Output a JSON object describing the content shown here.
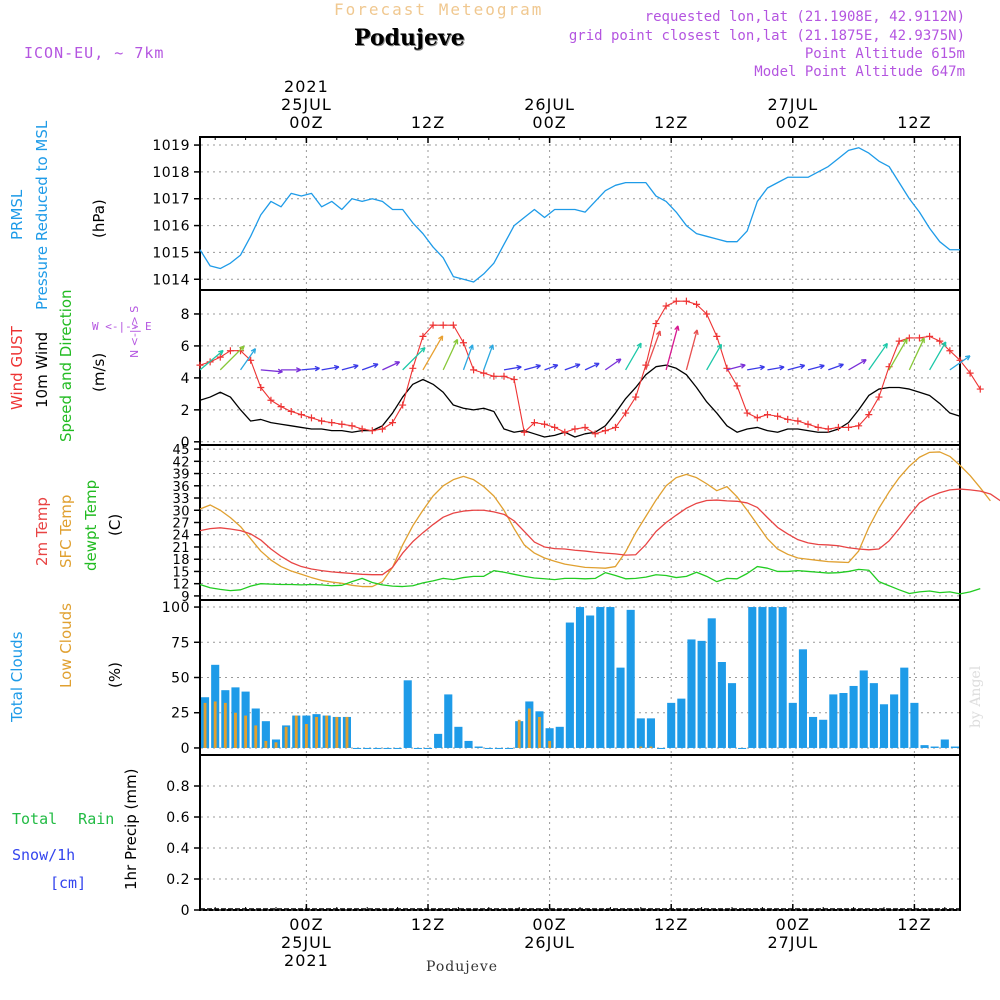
{
  "header": {
    "product": "Forecast Meteogram",
    "station": "Podujeve",
    "model": "ICON-EU, ~ 7km",
    "requested": "requested lon,lat (21.1908E, 42.9112N)",
    "gridpoint": "grid point closest lon,lat (21.1875E, 42.9375N)",
    "point_alt": "Point Altitude 615m",
    "model_alt": "Model Point Altitude 647m",
    "footer_station": "Podujeve",
    "credit": "by Angel"
  },
  "time_axis": {
    "top_year": "2021",
    "bottom_year": "2021",
    "ticks": [
      {
        "h": 24,
        "hour": "00Z",
        "date": "25JUL"
      },
      {
        "h": 36,
        "hour": "12Z",
        "date": ""
      },
      {
        "h": 48,
        "hour": "00Z",
        "date": "26JUL"
      },
      {
        "h": 60,
        "hour": "12Z",
        "date": ""
      },
      {
        "h": 72,
        "hour": "00Z",
        "date": "27JUL"
      },
      {
        "h": 84,
        "hour": "12Z",
        "date": ""
      }
    ],
    "start_hour": 13.5,
    "end_hour": 88.5
  },
  "panel_labels": {
    "p1": [
      "PRMSL",
      "Pressure Reduced to MSL",
      "(hPa)"
    ],
    "p2": [
      "Wind GUST",
      "10m Wind",
      "Speed and Direction",
      "(m/s)"
    ],
    "compass": [
      "W <-|-> E",
      "N <-|-> S"
    ],
    "p3": [
      "2m Temp",
      "SFC Temp",
      "dewpt Temp",
      "(C)"
    ],
    "p4": [
      "Total Clouds",
      "Low Clouds",
      "(%)"
    ],
    "p5_left": [
      "Total Rain",
      "Snow/1h",
      "[cm]"
    ],
    "p5_axis": "1hr Precip (mm)"
  },
  "colors": {
    "pressure": "#1e9be8",
    "gust": "#ee3333",
    "wind": "#000000",
    "t2m": "#e84444",
    "tsfc": "#e0a030",
    "dewpt": "#22cc22",
    "total_clouds": "#1e9be8",
    "low_clouds": "#e0a030",
    "rain": "#22bb44",
    "snow": "#3344ee",
    "purple": "#b455e0"
  },
  "chart_data": [
    {
      "type": "line",
      "title": "PRMSL Pressure Reduced to MSL",
      "ylabel": "(hPa)",
      "ylim": [
        1013.6,
        1019.3
      ],
      "yticks": [
        1014,
        1015,
        1016,
        1017,
        1018,
        1019
      ],
      "x_start": 13.5,
      "x_step": 1,
      "series": [
        {
          "name": "PRMSL",
          "values": [
            1015.1,
            1014.5,
            1014.4,
            1014.6,
            1014.9,
            1015.6,
            1016.4,
            1016.9,
            1016.7,
            1017.2,
            1017.1,
            1017.2,
            1016.7,
            1016.9,
            1016.6,
            1017.0,
            1016.9,
            1017.0,
            1016.9,
            1016.6,
            1016.6,
            1016.1,
            1015.7,
            1015.2,
            1014.8,
            1014.1,
            1014.0,
            1013.9,
            1014.2,
            1014.6,
            1015.3,
            1016.0,
            1016.3,
            1016.6,
            1016.3,
            1016.6,
            1016.6,
            1016.6,
            1016.5,
            1016.9,
            1017.3,
            1017.5,
            1017.6,
            1017.6,
            1017.6,
            1017.1,
            1016.9,
            1016.5,
            1016.0,
            1015.7,
            1015.6,
            1015.5,
            1015.4,
            1015.4,
            1015.8,
            1016.9,
            1017.4,
            1017.6,
            1017.8,
            1017.8,
            1017.8,
            1018.0,
            1018.2,
            1018.5,
            1018.8,
            1018.9,
            1018.7,
            1018.4,
            1018.2,
            1017.6,
            1017.0,
            1016.5,
            1015.9,
            1015.4,
            1015.1,
            1015.1
          ]
        }
      ]
    },
    {
      "type": "line",
      "title": "Wind GUST / 10m Wind Speed and Direction",
      "ylabel": "(m/s)",
      "ylim": [
        -0.2,
        9.5
      ],
      "yticks": [
        0,
        2,
        4,
        6,
        8
      ],
      "x_start": 13.5,
      "x_step": 1,
      "series": [
        {
          "name": "Wind GUST",
          "values": [
            4.8,
            5.0,
            5.3,
            5.7,
            5.7,
            5.1,
            3.4,
            2.6,
            2.2,
            1.9,
            1.7,
            1.5,
            1.3,
            1.2,
            1.1,
            1.0,
            0.8,
            0.7,
            0.8,
            1.2,
            2.3,
            4.6,
            6.6,
            7.3,
            7.3,
            7.3,
            6.2,
            4.5,
            4.3,
            4.1,
            4.1,
            3.9,
            0.6,
            1.2,
            1.1,
            0.9,
            0.6,
            0.8,
            0.9,
            0.5,
            0.7,
            0.9,
            1.8,
            2.8,
            4.8,
            7.4,
            8.5,
            8.8,
            8.8,
            8.6,
            8.0,
            6.6,
            4.6,
            3.5,
            1.8,
            1.5,
            1.7,
            1.6,
            1.4,
            1.3,
            1.1,
            0.9,
            0.8,
            0.9,
            0.9,
            1.0,
            1.7,
            2.8,
            4.7,
            6.3,
            6.5,
            6.5,
            6.6,
            6.3,
            5.7,
            5.1,
            4.3,
            3.3
          ]
        },
        {
          "name": "10m Wind",
          "values": [
            2.6,
            2.8,
            3.1,
            2.8,
            2.0,
            1.3,
            1.4,
            1.2,
            1.1,
            1.0,
            0.9,
            0.8,
            0.8,
            0.7,
            0.7,
            0.6,
            0.7,
            0.7,
            1.0,
            1.8,
            2.8,
            3.6,
            3.9,
            3.6,
            3.1,
            2.3,
            2.1,
            2.0,
            2.1,
            1.9,
            0.8,
            0.6,
            0.7,
            0.5,
            0.3,
            0.4,
            0.6,
            0.3,
            0.5,
            0.6,
            1.0,
            1.8,
            2.7,
            3.4,
            4.2,
            4.7,
            4.8,
            4.6,
            4.2,
            3.4,
            2.5,
            1.8,
            1.0,
            0.6,
            0.8,
            0.9,
            0.7,
            0.6,
            0.8,
            0.8,
            0.7,
            0.6,
            0.6,
            0.8,
            1.2,
            2.0,
            2.9,
            3.3,
            3.4,
            3.4,
            3.3,
            3.1,
            2.9,
            2.4,
            1.8,
            1.6
          ]
        }
      ],
      "wind_direction_from_deg": [
        230,
        230,
        225,
        225,
        215,
        200,
        275,
        270,
        270,
        270,
        265,
        265,
        260,
        260,
        255,
        255,
        250,
        250,
        245,
        240,
        225,
        215,
        210,
        210,
        205,
        200,
        200,
        195,
        200,
        205,
        260,
        260,
        255,
        255,
        250,
        250,
        250,
        245,
        245,
        245,
        235,
        225,
        210,
        205,
        200,
        200,
        195,
        195,
        195,
        190,
        210,
        250,
        255,
        255,
        260,
        260,
        260,
        260,
        255,
        255,
        255,
        250,
        250,
        250,
        240,
        225,
        215,
        210,
        210,
        205,
        205,
        200,
        210,
        220,
        235,
        245
      ]
    },
    {
      "type": "line",
      "title": "2m Temp / SFC Temp / dewpt Temp",
      "ylabel": "(C)",
      "ylim": [
        8,
        46
      ],
      "yticks": [
        9,
        12,
        15,
        18,
        21,
        24,
        27,
        30,
        33,
        36,
        39,
        42,
        45
      ],
      "x_start": 13.5,
      "x_step": 1,
      "series": [
        {
          "name": "2m Temp",
          "values": [
            25.0,
            25.5,
            25.7,
            25.4,
            25.0,
            24.2,
            22.7,
            20.5,
            18.7,
            17.2,
            16.2,
            15.6,
            15.2,
            14.9,
            14.7,
            14.5,
            14.3,
            14.2,
            14.2,
            16.0,
            19.5,
            22.3,
            24.5,
            26.5,
            28.3,
            29.3,
            29.8,
            30.0,
            30.0,
            29.6,
            29.0,
            27.4,
            24.8,
            22.2,
            21.0,
            20.6,
            20.5,
            20.2,
            20.0,
            19.7,
            19.5,
            19.3,
            19.0,
            19.1,
            21.6,
            24.8,
            27.0,
            28.8,
            30.5,
            31.7,
            32.4,
            32.5,
            32.3,
            32.2,
            31.8,
            30.7,
            28.2,
            25.8,
            24.2,
            22.8,
            22.0,
            21.6,
            21.5,
            21.3,
            20.8,
            20.5,
            20.3,
            20.5,
            22.5,
            25.5,
            28.8,
            31.8,
            33.3,
            34.3,
            35.0,
            35.2,
            35.0,
            34.7,
            34.0,
            32.3
          ]
        },
        {
          "name": "SFC Temp",
          "values": [
            30.3,
            31.3,
            30.0,
            28.2,
            26.0,
            23.0,
            20.0,
            17.8,
            16.2,
            15.1,
            14.3,
            13.5,
            12.8,
            12.4,
            12.1,
            11.6,
            11.3,
            11.3,
            12.5,
            16.0,
            21.5,
            26.2,
            30.0,
            33.5,
            36.0,
            37.5,
            38.3,
            37.5,
            35.8,
            33.5,
            30.0,
            25.5,
            21.5,
            19.5,
            18.3,
            17.5,
            16.8,
            16.4,
            16.0,
            15.9,
            15.8,
            16.2,
            19.8,
            24.5,
            28.5,
            32.5,
            36.0,
            38.0,
            38.8,
            38.0,
            36.5,
            34.8,
            35.8,
            33.3,
            30.0,
            26.5,
            23.0,
            20.5,
            19.2,
            18.3,
            18.0,
            17.7,
            17.4,
            17.3,
            17.2,
            20.0,
            25.8,
            30.5,
            34.5,
            38.0,
            40.8,
            43.0,
            44.2,
            44.3,
            43.2,
            41.0,
            38.5,
            35.5,
            32.3
          ]
        },
        {
          "name": "dewpt Temp",
          "values": [
            11.8,
            11.0,
            10.6,
            10.3,
            10.5,
            11.4,
            12.0,
            11.9,
            11.8,
            11.8,
            11.7,
            11.8,
            11.7,
            11.5,
            11.6,
            12.5,
            13.3,
            12.3,
            11.7,
            11.4,
            11.3,
            11.5,
            12.2,
            12.7,
            13.3,
            13.0,
            13.5,
            13.8,
            13.8,
            15.2,
            14.8,
            14.3,
            13.8,
            13.4,
            13.2,
            13.0,
            13.3,
            13.3,
            13.2,
            13.3,
            14.7,
            14.0,
            13.2,
            13.3,
            13.6,
            14.2,
            14.0,
            13.5,
            13.8,
            14.8,
            13.8,
            12.5,
            13.3,
            13.2,
            14.5,
            16.2,
            15.8,
            15.0,
            15.0,
            15.2,
            15.0,
            14.8,
            14.6,
            14.7,
            15.0,
            15.5,
            15.3,
            12.5,
            11.5,
            10.5,
            9.6,
            10.0,
            10.2,
            9.8,
            10.0,
            9.5,
            10.0,
            10.8
          ]
        }
      ]
    },
    {
      "type": "bar",
      "title": "Total Clouds / Low Clouds",
      "ylabel": "(%)",
      "ylim": [
        -5,
        105
      ],
      "yticks": [
        0,
        25,
        50,
        75,
        100
      ],
      "x_start": 13.5,
      "x_step": 1,
      "series": [
        {
          "name": "Total Clouds",
          "values": [
            36,
            59,
            41,
            43,
            40,
            28,
            19,
            6,
            16,
            23,
            23,
            24,
            23,
            22,
            22,
            0,
            0,
            0,
            0,
            0,
            48,
            0,
            0,
            10,
            38,
            15,
            5,
            1,
            0,
            0,
            0,
            19,
            33,
            26,
            14,
            15,
            89,
            100,
            94,
            100,
            100,
            57,
            98,
            21,
            21,
            0,
            32,
            35,
            77,
            76,
            92,
            61,
            46,
            0,
            100,
            100,
            100,
            100,
            32,
            70,
            22,
            20,
            38,
            39,
            44,
            55,
            46,
            31,
            38,
            57,
            32,
            2,
            1,
            6,
            1,
            0,
            0,
            0,
            72,
            0,
            0,
            32,
            35,
            33,
            14
          ]
        },
        {
          "name": "Low Clouds",
          "values": [
            32,
            33,
            32,
            25,
            23,
            16,
            5,
            4,
            15,
            23,
            17,
            22,
            23,
            22,
            22,
            0,
            0,
            0,
            0,
            0,
            0,
            0,
            0,
            0,
            0,
            0,
            0,
            0,
            0,
            0,
            0,
            20,
            28,
            22,
            5,
            0,
            0,
            0,
            0,
            0,
            0,
            0,
            0,
            1,
            1,
            0,
            0,
            0,
            0,
            0,
            0,
            0,
            0,
            0,
            0,
            0,
            0,
            0,
            0,
            0,
            0,
            0,
            0,
            0,
            0,
            0,
            0,
            0,
            0,
            0,
            0,
            0,
            0,
            0,
            0,
            0,
            0,
            0,
            0,
            0,
            0,
            0,
            0,
            0,
            0
          ]
        }
      ]
    },
    {
      "type": "bar",
      "title": "1hr Precip",
      "ylabel": "1hr Precip (mm)",
      "ylim": [
        0,
        1.0
      ],
      "yticks": [
        "0",
        "0.2",
        "0.4",
        "0.6",
        "0.8"
      ],
      "series": [
        {
          "name": "Total Rain",
          "values": []
        },
        {
          "name": "Snow/1h",
          "values": []
        }
      ]
    }
  ]
}
